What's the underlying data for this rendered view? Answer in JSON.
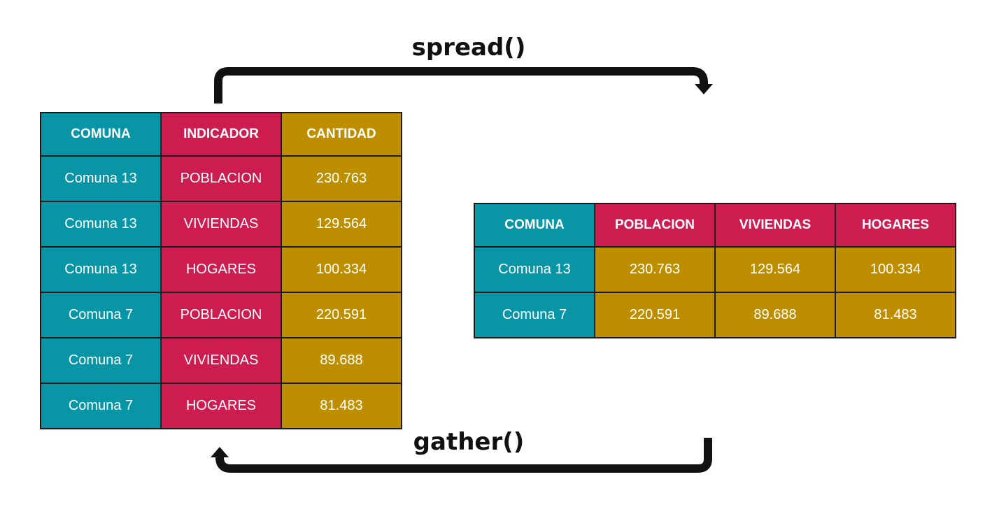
{
  "colors": {
    "teal": "#0896a6",
    "crimson": "#cc1c50",
    "gold": "#bd8f00",
    "arrow": "#111111"
  },
  "labels": {
    "spread": "spread()",
    "gather": "gather()"
  },
  "long_table": {
    "headers": [
      "COMUNA",
      "INDICADOR",
      "CANTIDAD"
    ],
    "rows": [
      [
        "Comuna 13",
        "POBLACION",
        "230.763"
      ],
      [
        "Comuna 13",
        "VIVIENDAS",
        "129.564"
      ],
      [
        "Comuna 13",
        "HOGARES",
        "100.334"
      ],
      [
        "Comuna 7",
        "POBLACION",
        "220.591"
      ],
      [
        "Comuna 7",
        "VIVIENDAS",
        "89.688"
      ],
      [
        "Comuna 7",
        "HOGARES",
        "81.483"
      ]
    ]
  },
  "wide_table": {
    "headers": [
      "COMUNA",
      "POBLACION",
      "VIVIENDAS",
      "HOGARES"
    ],
    "rows": [
      [
        "Comuna 13",
        "230.763",
        "129.564",
        "100.334"
      ],
      [
        "Comuna 7",
        "220.591",
        "89.688",
        "81.483"
      ]
    ]
  }
}
